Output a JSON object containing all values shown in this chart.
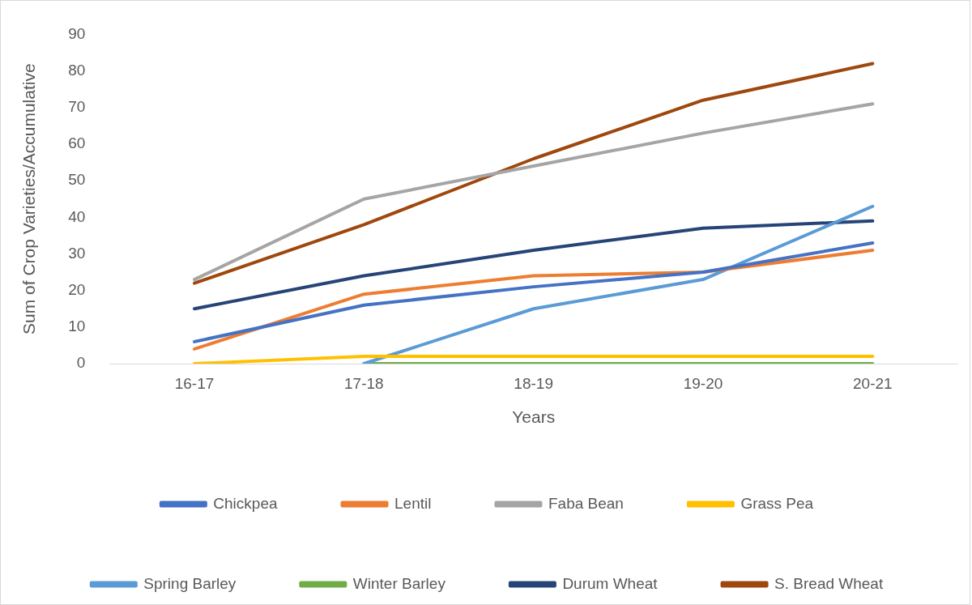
{
  "chart_data": {
    "type": "line",
    "xlabel": "Years",
    "ylabel": "Sum of Crop Varieties/Accumulative",
    "categories": [
      "16-17",
      "17-18",
      "18-19",
      "19-20",
      "20-21"
    ],
    "ylim": [
      0,
      90
    ],
    "yticks": [
      0,
      10,
      20,
      30,
      40,
      50,
      60,
      70,
      80,
      90
    ],
    "grid": false,
    "legend": "bottom",
    "marker": "none",
    "line_style": "solid",
    "series": [
      {
        "name": "Chickpea",
        "color": "#4472c4",
        "values": [
          6,
          16,
          21,
          25,
          33
        ]
      },
      {
        "name": "Lentil",
        "color": "#ed7d31",
        "values": [
          4,
          19,
          24,
          25,
          31
        ]
      },
      {
        "name": "Faba Bean",
        "color": "#a5a5a5",
        "values": [
          23,
          45,
          54,
          63,
          71
        ]
      },
      {
        "name": "Grass Pea",
        "color": "#ffc000",
        "values": [
          0,
          2,
          2,
          2,
          2
        ]
      },
      {
        "name": "Spring Barley",
        "color": "#5b9bd5",
        "values": [
          null,
          0,
          15,
          23,
          43
        ]
      },
      {
        "name": "Winter Barley",
        "color": "#70ad47",
        "values": [
          null,
          0,
          0,
          0,
          0
        ]
      },
      {
        "name": "Durum Wheat",
        "color": "#264478",
        "values": [
          15,
          24,
          31,
          37,
          39
        ]
      },
      {
        "name": "S. Bread Wheat",
        "color": "#9e480e",
        "values": [
          22,
          38,
          56,
          72,
          82
        ]
      }
    ]
  }
}
